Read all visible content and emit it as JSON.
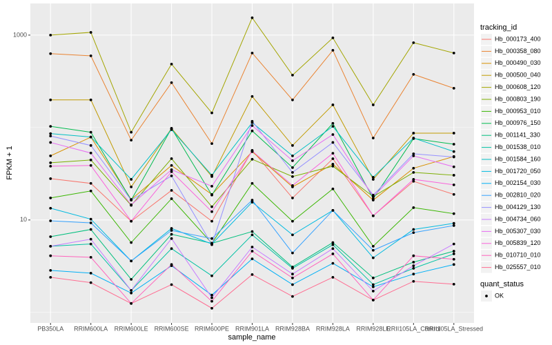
{
  "chart_data": {
    "type": "line",
    "x_label": "sample_name",
    "y_label": "FPKM + 1",
    "log_y": true,
    "grid": true,
    "categories": [
      "PB350LA",
      "RRIM600LA",
      "RRIM600LE",
      "RRIM600SE",
      "RRIM600PE",
      "RRIM901LA",
      "RRIM928BA",
      "RRIM928LA",
      "RRIM928LE",
      "RRII105LA_Control",
      "RRII105LA_Stressed"
    ],
    "ylim": [
      0.77,
      2200
    ],
    "yticks": [
      10,
      1000
    ],
    "minor_yticks": [
      1,
      100
    ],
    "legend_title": "tracking_id",
    "legend_position": "right",
    "shape_legend_title": "quant_status",
    "shape_legend_labels": [
      "OK"
    ],
    "series": [
      {
        "name": "Hb_000173_400",
        "color": "#F8766D",
        "values": [
          28,
          24.9,
          9.7,
          20.9,
          9.7,
          56.7,
          17.3,
          46,
          11.1,
          26.2,
          18.9
        ]
      },
      {
        "name": "Hb_000358_080",
        "color": "#EA8331",
        "values": [
          630,
          597,
          73,
          306,
          67,
          640,
          199,
          685,
          77,
          376,
          266
        ]
      },
      {
        "name": "Hb_000490_030",
        "color": "#D89000",
        "values": [
          49.4,
          78.7,
          16.7,
          38.9,
          18.9,
          54.8,
          22.8,
          40.2,
          16.4,
          36.3,
          48.6
        ]
      },
      {
        "name": "Hb_000500_040",
        "color": "#C09B00",
        "values": [
          199,
          199,
          22.8,
          98,
          29.5,
          217,
          64,
          176,
          27.5,
          87,
          87
        ]
      },
      {
        "name": "Hb_000608_120",
        "color": "#A3A500",
        "values": [
          1000,
          1070,
          89,
          486,
          144,
          1540,
          369,
          933,
          176,
          828,
          640
        ]
      },
      {
        "name": "Hb_000803_190",
        "color": "#7CAE00",
        "values": [
          41.6,
          44.6,
          14.4,
          46.1,
          13.9,
          45.4,
          29.5,
          38.2,
          17.9,
          32.7,
          30.5
        ]
      },
      {
        "name": "Hb_000953_010",
        "color": "#39B600",
        "values": [
          17.3,
          20.6,
          5.7,
          17,
          5.6,
          24.9,
          9.7,
          21.7,
          5.2,
          13.6,
          11.7
        ]
      },
      {
        "name": "Hb_000976_150",
        "color": "#00BB4E",
        "values": [
          103,
          89,
          16.4,
          98,
          18.6,
          92,
          36.9,
          111,
          17,
          76,
          66
        ]
      },
      {
        "name": "Hb_001141_330",
        "color": "#00BF7D",
        "values": [
          6.6,
          7.9,
          2.28,
          7,
          5.6,
          7.5,
          3.1,
          5.7,
          2.36,
          3.5,
          4.6
        ]
      },
      {
        "name": "Hb_001538_010",
        "color": "#00C1A3",
        "values": [
          5.2,
          5.5,
          1.73,
          4.9,
          2.49,
          6.9,
          3,
          5.4,
          2,
          3,
          4.3
        ]
      },
      {
        "name": "Hb_001584_160",
        "color": "#00BFC4",
        "values": [
          86,
          79,
          27.5,
          95,
          30.5,
          113,
          49.4,
          103,
          29,
          77,
          55
        ]
      },
      {
        "name": "Hb_001720_050",
        "color": "#00BAE0",
        "values": [
          13.4,
          10.2,
          3.6,
          8.1,
          5.5,
          15.6,
          6.9,
          12.7,
          3.9,
          7.9,
          9.2
        ]
      },
      {
        "name": "Hb_002154_030",
        "color": "#00B0F6",
        "values": [
          2.85,
          2.66,
          1.62,
          3.2,
          1.54,
          3.8,
          2,
          3.4,
          1.89,
          2.6,
          3.3
        ]
      },
      {
        "name": "Hb_002810_020",
        "color": "#35A2FF",
        "values": [
          9.8,
          9.3,
          3.6,
          7.7,
          6.3,
          16.4,
          4.4,
          12.7,
          4.7,
          7.3,
          8.7
        ]
      },
      {
        "name": "Hb_004129_130",
        "color": "#9590FF",
        "values": [
          81,
          64,
          16.4,
          30,
          5.4,
          117,
          32.7,
          69,
          18.6,
          52,
          48
        ]
      },
      {
        "name": "Hb_004734_060",
        "color": "#C77CFF",
        "values": [
          5.2,
          6.2,
          1.73,
          6.3,
          1.44,
          5.1,
          2.6,
          4.9,
          1.7,
          3.2,
          5.5
        ]
      },
      {
        "name": "Hb_005307_030",
        "color": "#E76BF3",
        "values": [
          69,
          53,
          14.6,
          35,
          23.2,
          105,
          43.8,
          84,
          17.9,
          49.4,
          37.6
        ]
      },
      {
        "name": "Hb_005839_120",
        "color": "#FA62DB",
        "values": [
          38.2,
          38.9,
          9.7,
          33.3,
          12.3,
          55.7,
          23.6,
          52.7,
          11.1,
          27.5,
          24
        ]
      },
      {
        "name": "Hb_010710_010",
        "color": "#FF62BC",
        "values": [
          4.1,
          3.95,
          1.25,
          3.3,
          1.32,
          4.6,
          2.36,
          4.3,
          1.36,
          4.1,
          3.76
        ]
      },
      {
        "name": "Hb_025557_010",
        "color": "#FF6C91",
        "values": [
          2.4,
          2.1,
          1.25,
          2,
          1.11,
          2.57,
          1.49,
          2.4,
          1.36,
          2.17,
          2.02
        ]
      }
    ]
  }
}
